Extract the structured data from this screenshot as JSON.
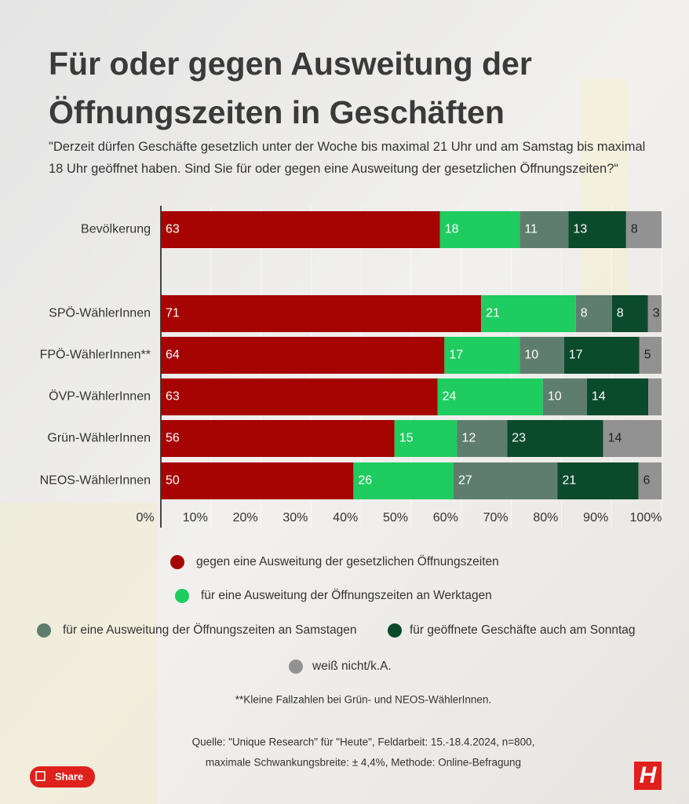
{
  "chart_data": {
    "type": "percent_stacked_barh",
    "title": "Für oder gegen Ausweitung der Öffnungszeiten in Geschäften",
    "subtitle": "\"Derzeit dürfen Geschäfte gesetzlich unter der Woche bis maximal 21 Uhr und am Samstag bis maximal 18 Uhr geöffnet haben. Sind Sie für oder gegen eine Ausweitung der gesetzlichen Öffnungszeiten?“",
    "categories": [
      "Bevölkerung",
      "SPÖ-WählerInnen",
      "FPÖ-WählerInnen**",
      "ÖVP-WählerInnen",
      "Grün-WählerInnen",
      "NEOS-WählerInnen"
    ],
    "series": [
      {
        "name": "gegen eine Ausweitung der gesetzlichen Öffnungszeiten",
        "color": "#a60303",
        "values": [
          63,
          71,
          64,
          63,
          56,
          50
        ]
      },
      {
        "name": "für eine Ausweitung der Öffnungszeiten an Werktagen",
        "color": "#1fcc60",
        "values": [
          18,
          21,
          17,
          24,
          15,
          26
        ]
      },
      {
        "name": "für eine Ausweitung der Öffnungszeiten an Samstagen",
        "color": "#5f7d6e",
        "values": [
          11,
          8,
          10,
          10,
          12,
          27
        ]
      },
      {
        "name": "für geöffnete Geschäfte auch am Sonntag",
        "color": "#0b4a2b",
        "values": [
          13,
          8,
          17,
          14,
          23,
          21
        ]
      },
      {
        "name": "weiß nicht/k.A.",
        "color": "#929292",
        "values": [
          8,
          3,
          5,
          3,
          14,
          6
        ],
        "value_labels": [
          "8",
          "3",
          "5",
          null,
          "14",
          "6"
        ]
      }
    ],
    "xlim": [
      0,
      100
    ],
    "xticks": [
      {
        "value": 0,
        "label": "0%"
      },
      {
        "value": 10,
        "label": "10%"
      },
      {
        "value": 20,
        "label": "20%"
      },
      {
        "value": 30,
        "label": "30%"
      },
      {
        "value": 40,
        "label": "40%"
      },
      {
        "value": 50,
        "label": "50%"
      },
      {
        "value": 60,
        "label": "60%"
      },
      {
        "value": 70,
        "label": "70%"
      },
      {
        "value": 80,
        "label": "80%"
      },
      {
        "value": 90,
        "label": "90%"
      },
      {
        "value": 100,
        "label": "100%"
      }
    ],
    "grid": true,
    "footnote": "**Kleine Fallzahlen bei Grün- und NEOS-WählerInnen.",
    "source": [
      "Quelle: \"Unique Research\" für \"Heute\", Feldarbeit: 15.-18.4.2024, n=800,",
      "maximale Schwankungsbreite: ± 4,4%, Methode: Online-Befragung"
    ]
  },
  "share_button": "Share",
  "logo": "H"
}
